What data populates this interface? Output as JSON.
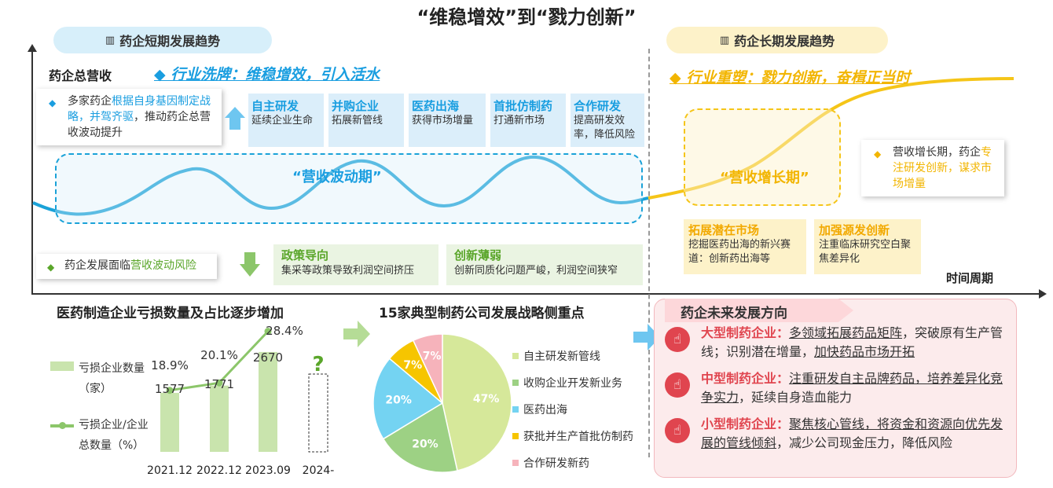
{
  "title": "“维稳增效”到“戮力创新”",
  "pills": {
    "short": "药企短期发展趋势",
    "long": "药企长期发展趋势",
    "icon": "bars-icon"
  },
  "axes": {
    "y": "药企总营收",
    "x": "时间周期"
  },
  "headlines": {
    "short": "◆ 行业洗牌：维稳增效，引入活水",
    "long": "◆ 行业重塑：戮力创新，奋楫正当时"
  },
  "card_top_left": {
    "pre": "多家药企",
    "hi": "根据自身基因制定战略，并驾齐驱",
    "post": "，推动药企总营收波动提升"
  },
  "short_boxes": [
    {
      "head": "自主研发",
      "body": "延续企业生命"
    },
    {
      "head": "并购企业",
      "body": "拓展新管线"
    },
    {
      "head": "医药出海",
      "body": "获得市场增量"
    },
    {
      "head": "首批仿制药",
      "body": "打通新市场"
    },
    {
      "head": "合作研发",
      "body": "提高研发效率，降低风险"
    }
  ],
  "wave_label": "“营收波动期”",
  "growth_label": "“营收增长期”",
  "card_right": {
    "pre": "营收增长期，药企",
    "hi": "专注研发创新，谋求市场增量"
  },
  "long_boxes": [
    {
      "head": "拓展潜在市场",
      "body": "挖掘医药出海的新兴赛道：创新药出海等"
    },
    {
      "head": "加强源发创新",
      "body": "注重临床研究空白聚焦差异化"
    }
  ],
  "card_bottom_left": {
    "pre": "药企发展面临",
    "hi": "营收波动风险"
  },
  "risk_boxes": [
    {
      "head": "政策导向",
      "body": "集采等政策导致利润空间挤压"
    },
    {
      "head": "创新薄弱",
      "body": "创新同质化问题严峻，利润空间狭窄"
    }
  ],
  "colors": {
    "blue": "#1a9ee0",
    "yellow": "#f2b500",
    "green": "#8cc66a",
    "red": "#e0454f"
  },
  "chart1": {
    "title": "医药制造企业亏损数量及占比逐步增加",
    "legend_bar": "亏损企业数量（家）",
    "legend_line": "亏损企业/企业总数量（%）",
    "unknown_mark": "?"
  },
  "chart2": {
    "title": "15家典型制药公司发展战略侧重点"
  },
  "chart_data": [
    {
      "type": "bar",
      "categories": [
        "2021.12",
        "2022.12",
        "2023.09",
        "2024-"
      ],
      "series": [
        {
          "name": "亏损企业数量（家）",
          "values": [
            1577,
            1771,
            2670,
            null
          ]
        },
        {
          "name": "亏损企业/企业总数量（%）",
          "values": [
            18.9,
            20.1,
            28.4,
            null
          ]
        }
      ],
      "bar_labels": [
        "1577",
        "1771",
        "2670"
      ],
      "line_labels": [
        "18.9%",
        "20.1%",
        "28.4%"
      ]
    },
    {
      "type": "pie",
      "labels": [
        "自主研发新管线",
        "收购企业开发新业务",
        "医药出海",
        "获批并生产首批仿制药",
        "合作研发新药"
      ],
      "values": [
        47,
        20,
        20,
        7,
        7
      ],
      "value_labels": [
        "47%",
        "20%",
        "20%",
        "7%",
        "7%"
      ],
      "colors": [
        "#d6e89a",
        "#9dd184",
        "#74d3f2",
        "#f6c500",
        "#f6b3bb"
      ]
    }
  ],
  "future": {
    "title": "药企未来发展方向",
    "items": [
      {
        "icon": "hand-icon",
        "head": "大型制药企业：",
        "a": "多领域",
        "b": "拓展药品矩阵",
        "c": "，突破原有生产管线；识别潜在增量，",
        "d": "加快药品市场开拓"
      },
      {
        "icon": "hand-icon",
        "head": "中型制药企业：",
        "a": "注重研发自主品牌药品，培养差异化竞争实力",
        "b": "，延续自身造血能力"
      },
      {
        "icon": "hand-icon",
        "head": "小型制药企业：",
        "a": "聚焦核心管线，将资金和资源向优先发展的管线倾斜",
        "b": "，减少公司现金压力，降低风险"
      }
    ]
  }
}
